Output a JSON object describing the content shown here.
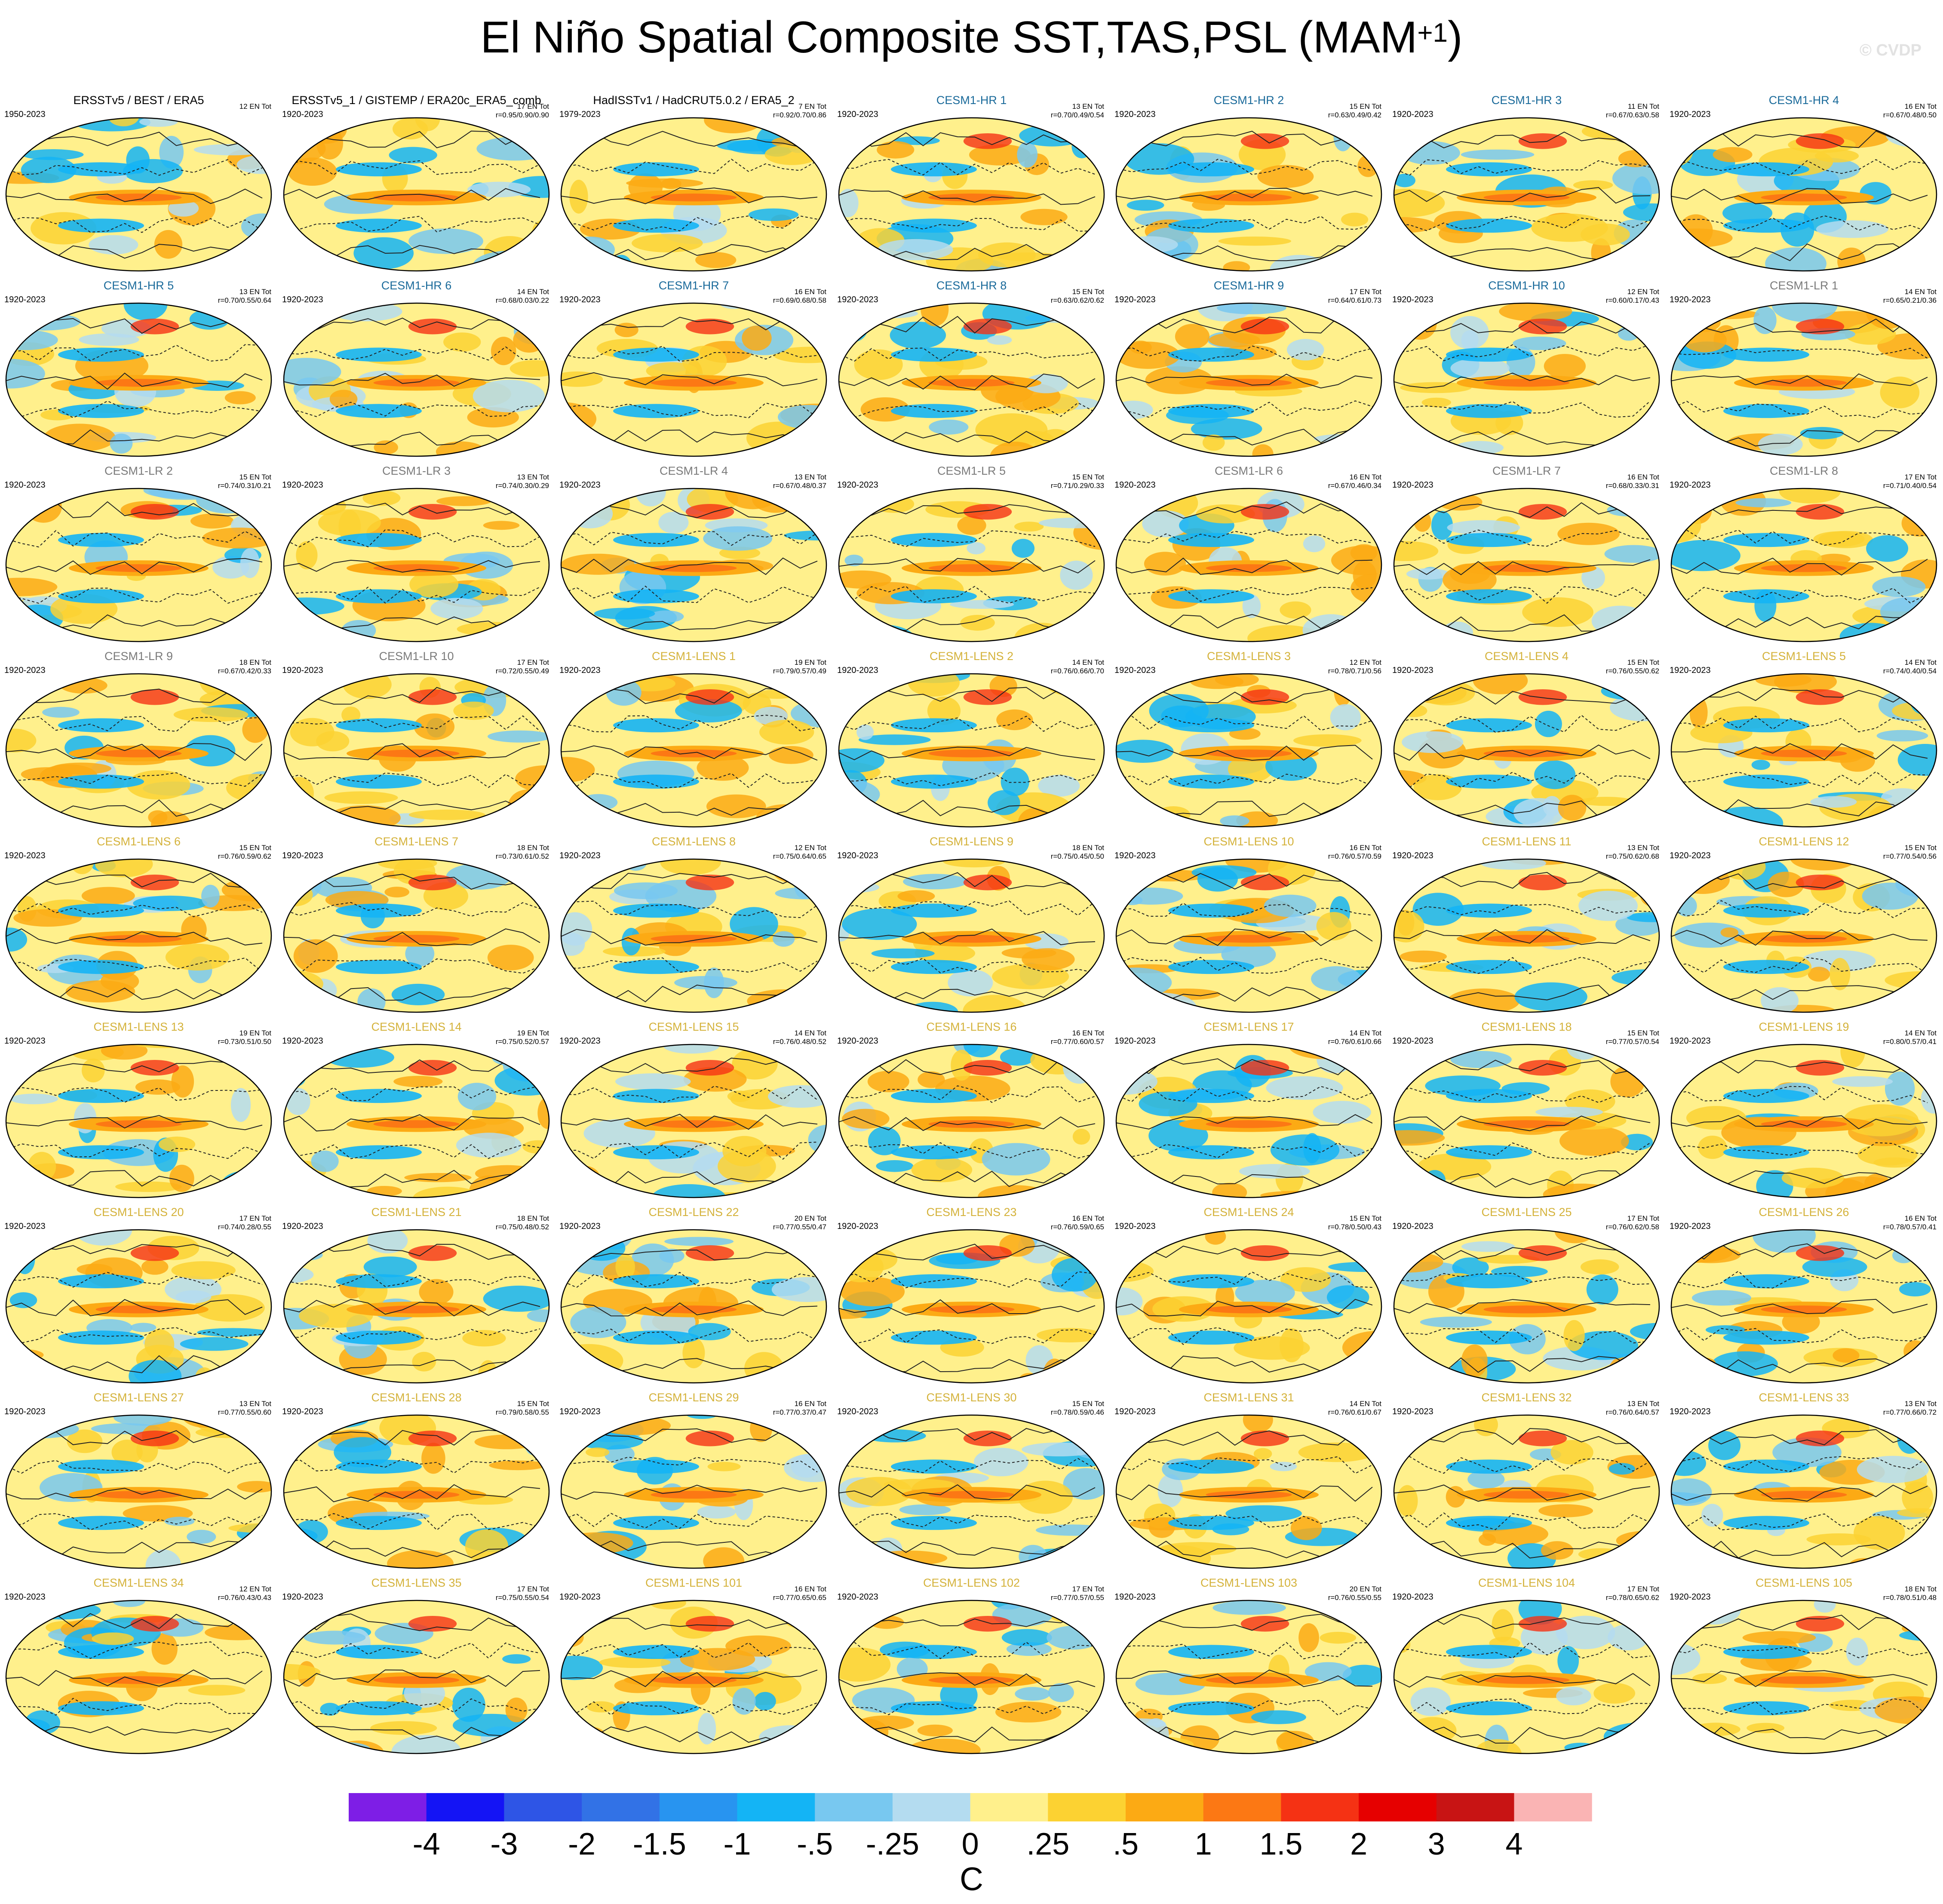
{
  "title": "El Niño Spatial Composite SST,TAS,PSL (MAM",
  "title_sup": "+1",
  "title_close": ")",
  "watermark": "© CVDP",
  "colors": {
    "obs_title": "#000000",
    "hr_title": "#1a6a9a",
    "lr_title": "#7a7a7a",
    "lens_title": "#d4b23a",
    "map_outline": "#000000",
    "contour": "#222222"
  },
  "panels": [
    {
      "title": "ERSSTv5 / BEST / ERA5",
      "years": "1950-2023",
      "count": "12 EN Tot",
      "r": "",
      "group": "obs"
    },
    {
      "title": "ERSSTv5_1 / GISTEMP / ERA20c_ERA5_comb",
      "years": "1920-2023",
      "count": "17 EN Tot",
      "r": "r=0.95/0.90/0.90",
      "group": "obs"
    },
    {
      "title": "HadISSTv1 / HadCRUT5.0.2 / ERA5_2",
      "years": "1979-2023",
      "count": "7 EN Tot",
      "r": "r=0.92/0.70/0.86",
      "group": "obs"
    },
    {
      "title": "CESM1-HR 1",
      "years": "1920-2023",
      "count": "13 EN Tot",
      "r": "r=0.70/0.49/0.54",
      "group": "hr"
    },
    {
      "title": "CESM1-HR 2",
      "years": "1920-2023",
      "count": "15 EN Tot",
      "r": "r=0.63/0.49/0.42",
      "group": "hr"
    },
    {
      "title": "CESM1-HR 3",
      "years": "1920-2023",
      "count": "11 EN Tot",
      "r": "r=0.67/0.63/0.58",
      "group": "hr"
    },
    {
      "title": "CESM1-HR 4",
      "years": "1920-2023",
      "count": "16 EN Tot",
      "r": "r=0.67/0.48/0.50",
      "group": "hr"
    },
    {
      "title": "CESM1-HR 5",
      "years": "1920-2023",
      "count": "13 EN Tot",
      "r": "r=0.70/0.55/0.64",
      "group": "hr"
    },
    {
      "title": "CESM1-HR 6",
      "years": "1920-2023",
      "count": "14 EN Tot",
      "r": "r=0.68/0.03/0.22",
      "group": "hr"
    },
    {
      "title": "CESM1-HR 7",
      "years": "1920-2023",
      "count": "16 EN Tot",
      "r": "r=0.69/0.68/0.58",
      "group": "hr"
    },
    {
      "title": "CESM1-HR 8",
      "years": "1920-2023",
      "count": "15 EN Tot",
      "r": "r=0.63/0.62/0.62",
      "group": "hr"
    },
    {
      "title": "CESM1-HR 9",
      "years": "1920-2023",
      "count": "17 EN Tot",
      "r": "r=0.64/0.61/0.73",
      "group": "hr"
    },
    {
      "title": "CESM1-HR 10",
      "years": "1920-2023",
      "count": "12 EN Tot",
      "r": "r=0.60/0.17/0.43",
      "group": "hr"
    },
    {
      "title": "CESM1-LR 1",
      "years": "1920-2023",
      "count": "14 EN Tot",
      "r": "r=0.65/0.21/0.36",
      "group": "lr"
    },
    {
      "title": "CESM1-LR 2",
      "years": "1920-2023",
      "count": "15 EN Tot",
      "r": "r=0.74/0.31/0.21",
      "group": "lr"
    },
    {
      "title": "CESM1-LR 3",
      "years": "1920-2023",
      "count": "13 EN Tot",
      "r": "r=0.74/0.30/0.29",
      "group": "lr"
    },
    {
      "title": "CESM1-LR 4",
      "years": "1920-2023",
      "count": "13 EN Tot",
      "r": "r=0.67/0.48/0.37",
      "group": "lr"
    },
    {
      "title": "CESM1-LR 5",
      "years": "1920-2023",
      "count": "15 EN Tot",
      "r": "r=0.71/0.29/0.33",
      "group": "lr"
    },
    {
      "title": "CESM1-LR 6",
      "years": "1920-2023",
      "count": "16 EN Tot",
      "r": "r=0.67/0.46/0.34",
      "group": "lr"
    },
    {
      "title": "CESM1-LR 7",
      "years": "1920-2023",
      "count": "16 EN Tot",
      "r": "r=0.68/0.33/0.31",
      "group": "lr"
    },
    {
      "title": "CESM1-LR 8",
      "years": "1920-2023",
      "count": "17 EN Tot",
      "r": "r=0.71/0.40/0.54",
      "group": "lr"
    },
    {
      "title": "CESM1-LR 9",
      "years": "1920-2023",
      "count": "18 EN Tot",
      "r": "r=0.67/0.42/0.33",
      "group": "lr"
    },
    {
      "title": "CESM1-LR 10",
      "years": "1920-2023",
      "count": "17 EN Tot",
      "r": "r=0.72/0.55/0.49",
      "group": "lr"
    },
    {
      "title": "CESM1-LENS 1",
      "years": "1920-2023",
      "count": "19 EN Tot",
      "r": "r=0.79/0.57/0.49",
      "group": "lens"
    },
    {
      "title": "CESM1-LENS 2",
      "years": "1920-2023",
      "count": "14 EN Tot",
      "r": "r=0.76/0.66/0.70",
      "group": "lens"
    },
    {
      "title": "CESM1-LENS 3",
      "years": "1920-2023",
      "count": "12 EN Tot",
      "r": "r=0.78/0.71/0.56",
      "group": "lens"
    },
    {
      "title": "CESM1-LENS 4",
      "years": "1920-2023",
      "count": "15 EN Tot",
      "r": "r=0.76/0.55/0.62",
      "group": "lens"
    },
    {
      "title": "CESM1-LENS 5",
      "years": "1920-2023",
      "count": "14 EN Tot",
      "r": "r=0.74/0.40/0.54",
      "group": "lens"
    },
    {
      "title": "CESM1-LENS 6",
      "years": "1920-2023",
      "count": "15 EN Tot",
      "r": "r=0.76/0.59/0.62",
      "group": "lens"
    },
    {
      "title": "CESM1-LENS 7",
      "years": "1920-2023",
      "count": "18 EN Tot",
      "r": "r=0.73/0.61/0.52",
      "group": "lens"
    },
    {
      "title": "CESM1-LENS 8",
      "years": "1920-2023",
      "count": "12 EN Tot",
      "r": "r=0.75/0.64/0.65",
      "group": "lens"
    },
    {
      "title": "CESM1-LENS 9",
      "years": "1920-2023",
      "count": "18 EN Tot",
      "r": "r=0.75/0.45/0.50",
      "group": "lens"
    },
    {
      "title": "CESM1-LENS 10",
      "years": "1920-2023",
      "count": "16 EN Tot",
      "r": "r=0.76/0.57/0.59",
      "group": "lens"
    },
    {
      "title": "CESM1-LENS 11",
      "years": "1920-2023",
      "count": "13 EN Tot",
      "r": "r=0.75/0.62/0.68",
      "group": "lens"
    },
    {
      "title": "CESM1-LENS 12",
      "years": "1920-2023",
      "count": "15 EN Tot",
      "r": "r=0.77/0.54/0.56",
      "group": "lens"
    },
    {
      "title": "CESM1-LENS 13",
      "years": "1920-2023",
      "count": "19 EN Tot",
      "r": "r=0.73/0.51/0.50",
      "group": "lens"
    },
    {
      "title": "CESM1-LENS 14",
      "years": "1920-2023",
      "count": "19 EN Tot",
      "r": "r=0.75/0.52/0.57",
      "group": "lens"
    },
    {
      "title": "CESM1-LENS 15",
      "years": "1920-2023",
      "count": "14 EN Tot",
      "r": "r=0.76/0.48/0.52",
      "group": "lens"
    },
    {
      "title": "CESM1-LENS 16",
      "years": "1920-2023",
      "count": "16 EN Tot",
      "r": "r=0.77/0.60/0.57",
      "group": "lens"
    },
    {
      "title": "CESM1-LENS 17",
      "years": "1920-2023",
      "count": "14 EN Tot",
      "r": "r=0.76/0.61/0.66",
      "group": "lens"
    },
    {
      "title": "CESM1-LENS 18",
      "years": "1920-2023",
      "count": "15 EN Tot",
      "r": "r=0.77/0.57/0.54",
      "group": "lens"
    },
    {
      "title": "CESM1-LENS 19",
      "years": "1920-2023",
      "count": "14 EN Tot",
      "r": "r=0.80/0.57/0.41",
      "group": "lens"
    },
    {
      "title": "CESM1-LENS 20",
      "years": "1920-2023",
      "count": "17 EN Tot",
      "r": "r=0.74/0.28/0.55",
      "group": "lens"
    },
    {
      "title": "CESM1-LENS 21",
      "years": "1920-2023",
      "count": "18 EN Tot",
      "r": "r=0.75/0.48/0.52",
      "group": "lens"
    },
    {
      "title": "CESM1-LENS 22",
      "years": "1920-2023",
      "count": "20 EN Tot",
      "r": "r=0.77/0.55/0.47",
      "group": "lens"
    },
    {
      "title": "CESM1-LENS 23",
      "years": "1920-2023",
      "count": "16 EN Tot",
      "r": "r=0.76/0.59/0.65",
      "group": "lens"
    },
    {
      "title": "CESM1-LENS 24",
      "years": "1920-2023",
      "count": "15 EN Tot",
      "r": "r=0.78/0.50/0.43",
      "group": "lens"
    },
    {
      "title": "CESM1-LENS 25",
      "years": "1920-2023",
      "count": "17 EN Tot",
      "r": "r=0.76/0.62/0.58",
      "group": "lens"
    },
    {
      "title": "CESM1-LENS 26",
      "years": "1920-2023",
      "count": "16 EN Tot",
      "r": "r=0.78/0.57/0.41",
      "group": "lens"
    },
    {
      "title": "CESM1-LENS 27",
      "years": "1920-2023",
      "count": "13 EN Tot",
      "r": "r=0.77/0.55/0.60",
      "group": "lens"
    },
    {
      "title": "CESM1-LENS 28",
      "years": "1920-2023",
      "count": "15 EN Tot",
      "r": "r=0.79/0.58/0.55",
      "group": "lens"
    },
    {
      "title": "CESM1-LENS 29",
      "years": "1920-2023",
      "count": "16 EN Tot",
      "r": "r=0.77/0.37/0.47",
      "group": "lens"
    },
    {
      "title": "CESM1-LENS 30",
      "years": "1920-2023",
      "count": "15 EN Tot",
      "r": "r=0.78/0.59/0.46",
      "group": "lens"
    },
    {
      "title": "CESM1-LENS 31",
      "years": "1920-2023",
      "count": "14 EN Tot",
      "r": "r=0.76/0.61/0.67",
      "group": "lens"
    },
    {
      "title": "CESM1-LENS 32",
      "years": "1920-2023",
      "count": "13 EN Tot",
      "r": "r=0.76/0.64/0.57",
      "group": "lens"
    },
    {
      "title": "CESM1-LENS 33",
      "years": "1920-2023",
      "count": "13 EN Tot",
      "r": "r=0.77/0.66/0.72",
      "group": "lens"
    },
    {
      "title": "CESM1-LENS 34",
      "years": "1920-2023",
      "count": "12 EN Tot",
      "r": "r=0.76/0.43/0.43",
      "group": "lens"
    },
    {
      "title": "CESM1-LENS 35",
      "years": "1920-2023",
      "count": "17 EN Tot",
      "r": "r=0.75/0.55/0.54",
      "group": "lens"
    },
    {
      "title": "CESM1-LENS 101",
      "years": "1920-2023",
      "count": "16 EN Tot",
      "r": "r=0.77/0.65/0.65",
      "group": "lens"
    },
    {
      "title": "CESM1-LENS 102",
      "years": "1920-2023",
      "count": "17 EN Tot",
      "r": "r=0.77/0.57/0.55",
      "group": "lens"
    },
    {
      "title": "CESM1-LENS 103",
      "years": "1920-2023",
      "count": "20 EN Tot",
      "r": "r=0.76/0.55/0.55",
      "group": "lens"
    },
    {
      "title": "CESM1-LENS 104",
      "years": "1920-2023",
      "count": "17 EN Tot",
      "r": "r=0.78/0.65/0.62",
      "group": "lens"
    },
    {
      "title": "CESM1-LENS 105",
      "years": "1920-2023",
      "count": "18 EN Tot",
      "r": "r=0.78/0.51/0.48",
      "group": "lens"
    }
  ],
  "chart_data": {
    "type": "heatmap",
    "title": "El Niño Spatial Composite SST,TAS,PSL (MAM+1)",
    "units": "C",
    "layout": {
      "rows": 9,
      "cols": 7
    },
    "colorbar": {
      "labels": [
        "-4",
        "-3",
        "-2",
        "-1.5",
        "-1",
        "-.5",
        "-.25",
        "0",
        ".25",
        ".5",
        "1",
        "1.5",
        "2",
        "3",
        "4"
      ],
      "colors": [
        "#7e1ee6",
        "#1414f5",
        "#2e55e6",
        "#3272e6",
        "#2894f0",
        "#14b4f5",
        "#78c8f0",
        "#b4dcf0",
        "#fff08c",
        "#fcd232",
        "#fcaa14",
        "#fc7814",
        "#f53214",
        "#e60000",
        "#c81414",
        "#fab4b4"
      ]
    }
  }
}
